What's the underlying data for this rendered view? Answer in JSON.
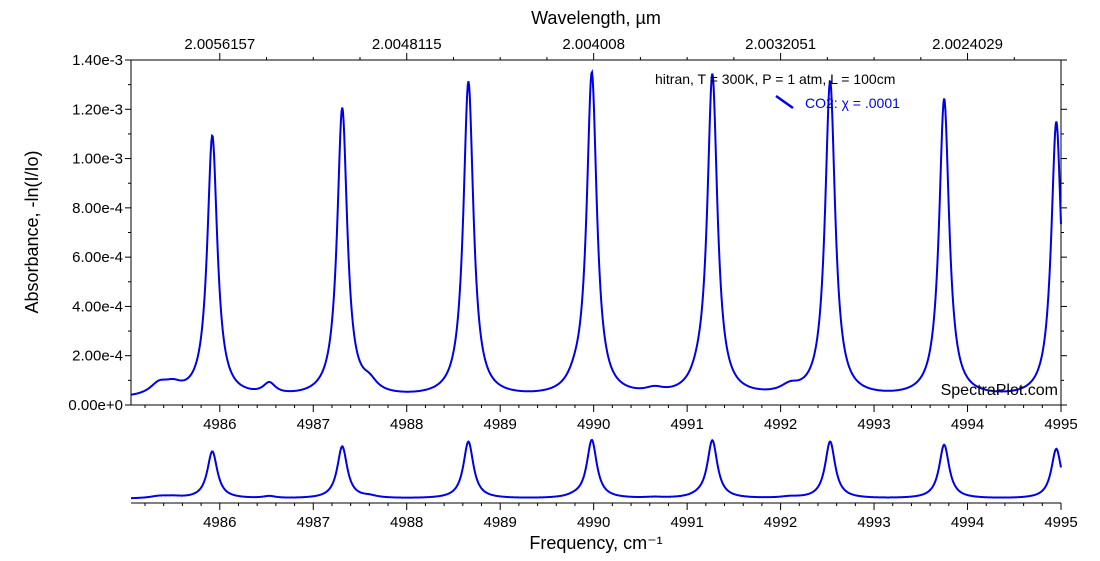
{
  "colors": {
    "series": "#0000e6",
    "axis": "#000000",
    "background": "#ffffff"
  },
  "chart_data": {
    "type": "line",
    "title": "",
    "top_axis_label": "Wavelength, µm",
    "top_ticks": [
      "2.0056157",
      "2.0048115",
      "2.004008",
      "2.0032051",
      "2.0024029"
    ],
    "top_tick_positions": [
      4986,
      4988,
      4990,
      4992,
      4994
    ],
    "xlabel": "Frequency, cm⁻¹",
    "ylabel": "Absorbance, -ln(I/Io)",
    "xlim": [
      4985.05,
      4995
    ],
    "ylim": [
      0,
      0.0014
    ],
    "x_ticks": [
      4986,
      4987,
      4988,
      4989,
      4990,
      4991,
      4992,
      4993,
      4994,
      4995
    ],
    "x_tick_labels": [
      "4986",
      "4987",
      "4988",
      "4989",
      "4990",
      "4991",
      "4992",
      "4993",
      "4994",
      "4995"
    ],
    "y_ticks": [
      0,
      0.0002,
      0.0004,
      0.0006,
      0.0008,
      0.001,
      0.0012,
      0.0014
    ],
    "y_tick_labels": [
      "0.00e+0",
      "2.00e-4",
      "4.00e-4",
      "6.00e-4",
      "8.00e-4",
      "1.00e-3",
      "1.20e-3",
      "1.40e-3"
    ],
    "annotation": "hitran, T = 300K, P = 1 atm, L = 100cm",
    "watermark": "SpectraPlot.com",
    "series": [
      {
        "name": "CO2: χ = .0001",
        "baseline": 2.5e-05,
        "peaks": [
          {
            "center": 4985.92,
            "amp": 0.00106,
            "hwhm": 0.065
          },
          {
            "center": 4987.31,
            "amp": 0.00117,
            "hwhm": 0.065
          },
          {
            "center": 4988.66,
            "amp": 0.00128,
            "hwhm": 0.065
          },
          {
            "center": 4989.98,
            "amp": 0.00131,
            "hwhm": 0.065
          },
          {
            "center": 4991.27,
            "amp": 0.0013,
            "hwhm": 0.065
          },
          {
            "center": 4992.53,
            "amp": 0.00128,
            "hwhm": 0.065
          },
          {
            "center": 4993.75,
            "amp": 0.00121,
            "hwhm": 0.065
          },
          {
            "center": 4994.95,
            "amp": 0.00112,
            "hwhm": 0.065
          },
          {
            "center": 4985.35,
            "amp": 4.5e-05,
            "hwhm": 0.12
          },
          {
            "center": 4985.5,
            "amp": 3.5e-05,
            "hwhm": 0.12
          },
          {
            "center": 4986.53,
            "amp": 4.5e-05,
            "hwhm": 0.08
          },
          {
            "center": 4987.6,
            "amp": 4e-05,
            "hwhm": 0.1
          },
          {
            "center": 4989.8,
            "amp": 3e-05,
            "hwhm": 0.1
          },
          {
            "center": 4990.65,
            "amp": 2e-05,
            "hwhm": 0.12
          },
          {
            "center": 4991.12,
            "amp": 3e-05,
            "hwhm": 0.1
          },
          {
            "center": 4992.1,
            "amp": 3e-05,
            "hwhm": 0.12
          }
        ]
      }
    ]
  }
}
